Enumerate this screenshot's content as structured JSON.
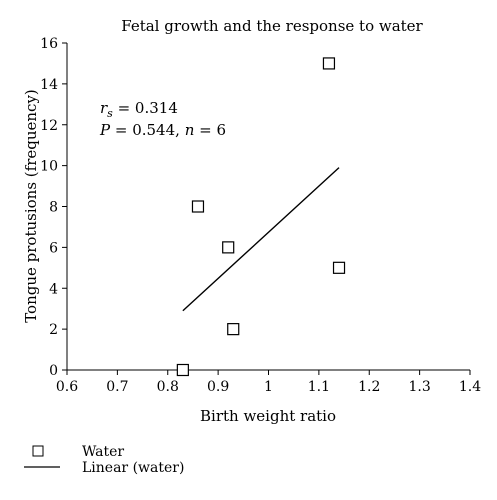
{
  "chart_data": {
    "type": "scatter",
    "title": "Fetal growth and the response to water",
    "xlabel": "Birth weight ratio",
    "ylabel": "Tongue protusions (frequency)",
    "xlim": [
      0.6,
      1.4
    ],
    "ylim": [
      0,
      16
    ],
    "xticks": [
      "0.6",
      "0.7",
      "0.8",
      "0.9",
      "1",
      "1.1",
      "1.2",
      "1.3",
      "1.4"
    ],
    "yticks": [
      "0",
      "2",
      "4",
      "6",
      "8",
      "10",
      "12",
      "14",
      "16"
    ],
    "grid": false,
    "legend_position": "bottom-left",
    "series": [
      {
        "name": "Water",
        "marker": "open-square",
        "points": [
          {
            "x": 0.83,
            "y": 0
          },
          {
            "x": 0.86,
            "y": 8
          },
          {
            "x": 0.92,
            "y": 6
          },
          {
            "x": 0.93,
            "y": 2
          },
          {
            "x": 1.12,
            "y": 15
          },
          {
            "x": 1.14,
            "y": 5
          }
        ]
      },
      {
        "name": "Linear (water)",
        "type": "line",
        "points": [
          {
            "x": 0.83,
            "y": 2.9
          },
          {
            "x": 1.14,
            "y": 9.9
          }
        ]
      }
    ],
    "annotations": {
      "rs_symbol": "r",
      "rs_subscript": "s",
      "rs_value": " = 0.314",
      "p_symbol": "P",
      "p_value": " = 0.544, ",
      "n_symbol": "n",
      "n_value": " = 6"
    },
    "colors": {
      "marker": "#000000",
      "line": "#000000"
    }
  }
}
